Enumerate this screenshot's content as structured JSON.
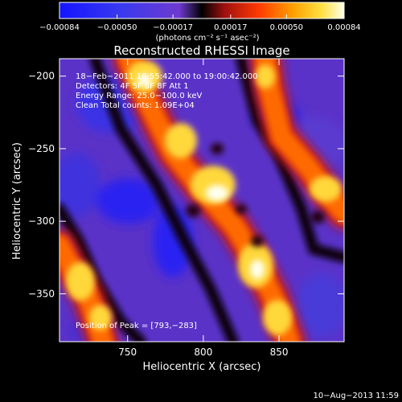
{
  "chart_data": {
    "type": "heatmap",
    "title": "Reconstructed RHESSI Image",
    "xlabel": "Heliocentric X (arcsec)",
    "ylabel": "Heliocentric Y (arcsec)",
    "xlim": [
      705,
      893
    ],
    "ylim": [
      -383,
      -188
    ],
    "x_ticks": [
      750,
      800,
      850
    ],
    "x_tick_labels": [
      "750",
      "800",
      "850"
    ],
    "y_ticks": [
      -200,
      -250,
      -300,
      -350
    ],
    "y_tick_labels": [
      "−200",
      "−250",
      "−300",
      "−350"
    ],
    "colorbar": {
      "range": [
        -0.00084,
        0.00084
      ],
      "ticks": [
        -0.00084,
        -0.0005,
        -0.00017,
        0.00017,
        0.0005,
        0.00084
      ],
      "tick_labels": [
        "−0.00084",
        "−0.00050",
        "−0.00017",
        "0.00017",
        "0.00050",
        "0.00084"
      ],
      "unit_label": "(photons cm⁻² s⁻¹ asec⁻²)"
    },
    "annotations": {
      "time_range": "18−Feb−2011 18:55:42.000 to 19:00:42.000",
      "detectors": "Detectors: 4F 5F 6F 8F  Att 1",
      "energy_range": "Energy Range: 25.0−100.0 keV",
      "clean_counts": "Clean    Total counts: 1.09E+04",
      "peak_position": "Position of Peak = [793,−283]"
    },
    "peak": [
      793,
      -283
    ],
    "bright_bands": [
      {
        "description": "upper-right diagonal emission ridge",
        "points": [
          [
            815,
            -188
          ],
          [
            818,
            -205
          ],
          [
            826,
            -240
          ],
          [
            848,
            -268
          ],
          [
            866,
            -286
          ],
          [
            880,
            -305
          ],
          [
            893,
            -312
          ]
        ]
      },
      {
        "description": "central diagonal emission ridge",
        "points": [
          [
            748,
            -188
          ],
          [
            762,
            -210
          ],
          [
            778,
            -240
          ],
          [
            793,
            -283
          ],
          [
            805,
            -300
          ],
          [
            822,
            -330
          ],
          [
            835,
            -355
          ],
          [
            850,
            -383
          ]
        ]
      },
      {
        "description": "lower-left emission ridge",
        "points": [
          [
            705,
            -300
          ],
          [
            716,
            -330
          ],
          [
            728,
            -355
          ],
          [
            740,
            -383
          ]
        ]
      }
    ],
    "grid": false
  },
  "footer": {
    "date": "10−Aug−2013 11:59"
  }
}
